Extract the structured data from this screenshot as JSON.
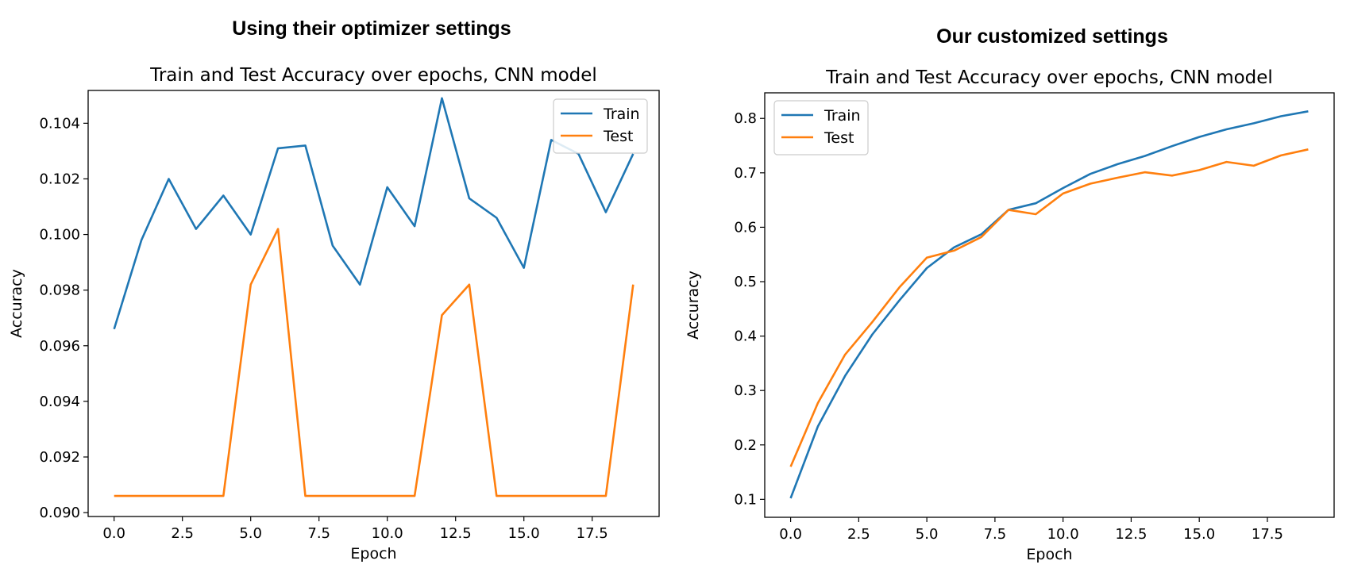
{
  "panels": [
    {
      "heading": "Using their optimizer settings"
    },
    {
      "heading": "Our customized settings"
    }
  ],
  "chart_data": [
    {
      "type": "line",
      "title": "Train and Test Accuracy over epochs, CNN model",
      "xlabel": "Epoch",
      "ylabel": "Accuracy",
      "x": [
        0,
        1,
        2,
        3,
        4,
        5,
        6,
        7,
        8,
        9,
        10,
        11,
        12,
        13,
        14,
        15,
        16,
        17,
        18,
        19
      ],
      "xlim": [
        -0.95,
        19.95
      ],
      "ylim": [
        0.08986,
        0.10518
      ],
      "xticks": [
        0.0,
        2.5,
        5.0,
        7.5,
        10.0,
        12.5,
        15.0,
        17.5
      ],
      "xtick_labels": [
        "0.0",
        "2.5",
        "5.0",
        "7.5",
        "10.0",
        "12.5",
        "15.0",
        "17.5"
      ],
      "yticks": [
        0.09,
        0.092,
        0.094,
        0.096,
        0.098,
        0.1,
        0.102,
        0.104
      ],
      "ytick_labels": [
        "0.090",
        "0.092",
        "0.094",
        "0.096",
        "0.098",
        "0.100",
        "0.102",
        "0.104"
      ],
      "legend_position": "upper right",
      "grid": false,
      "series": [
        {
          "name": "Train",
          "color": "#1f77b4",
          "values": [
            0.0966,
            0.0998,
            0.102,
            0.1002,
            0.1014,
            0.1,
            0.1031,
            0.1032,
            0.0996,
            0.0982,
            0.1017,
            0.1003,
            0.1049,
            0.1013,
            0.1006,
            0.0988,
            0.1034,
            0.1029,
            0.1008,
            0.1029
          ]
        },
        {
          "name": "Test",
          "color": "#ff7f0e",
          "values": [
            0.0906,
            0.0906,
            0.0906,
            0.0906,
            0.0906,
            0.0982,
            0.1002,
            0.0906,
            0.0906,
            0.0906,
            0.0906,
            0.0906,
            0.0971,
            0.0982,
            0.0906,
            0.0906,
            0.0906,
            0.0906,
            0.0906,
            0.0982
          ]
        }
      ]
    },
    {
      "type": "line",
      "title": "Train and Test Accuracy over epochs, CNN model",
      "xlabel": "Epoch",
      "ylabel": "Accuracy",
      "x": [
        0,
        1,
        2,
        3,
        4,
        5,
        6,
        7,
        8,
        9,
        10,
        11,
        12,
        13,
        14,
        15,
        16,
        17,
        18,
        19
      ],
      "xlim": [
        -0.95,
        19.95
      ],
      "ylim": [
        0.067,
        0.847
      ],
      "xticks": [
        0.0,
        2.5,
        5.0,
        7.5,
        10.0,
        12.5,
        15.0,
        17.5
      ],
      "xtick_labels": [
        "0.0",
        "2.5",
        "5.0",
        "7.5",
        "10.0",
        "12.5",
        "15.0",
        "17.5"
      ],
      "yticks": [
        0.1,
        0.2,
        0.3,
        0.4,
        0.5,
        0.6,
        0.7,
        0.8
      ],
      "ytick_labels": [
        "0.1",
        "0.2",
        "0.3",
        "0.4",
        "0.5",
        "0.6",
        "0.7",
        "0.8"
      ],
      "legend_position": "upper left",
      "grid": false,
      "series": [
        {
          "name": "Train",
          "color": "#1f77b4",
          "values": [
            0.102,
            0.234,
            0.327,
            0.403,
            0.466,
            0.525,
            0.563,
            0.587,
            0.632,
            0.644,
            0.672,
            0.698,
            0.716,
            0.731,
            0.749,
            0.766,
            0.78,
            0.791,
            0.804,
            0.813
          ]
        },
        {
          "name": "Test",
          "color": "#ff7f0e",
          "values": [
            0.16,
            0.277,
            0.366,
            0.426,
            0.49,
            0.544,
            0.557,
            0.582,
            0.632,
            0.624,
            0.662,
            0.68,
            0.691,
            0.701,
            0.695,
            0.705,
            0.72,
            0.713,
            0.732,
            0.743
          ]
        }
      ]
    }
  ]
}
